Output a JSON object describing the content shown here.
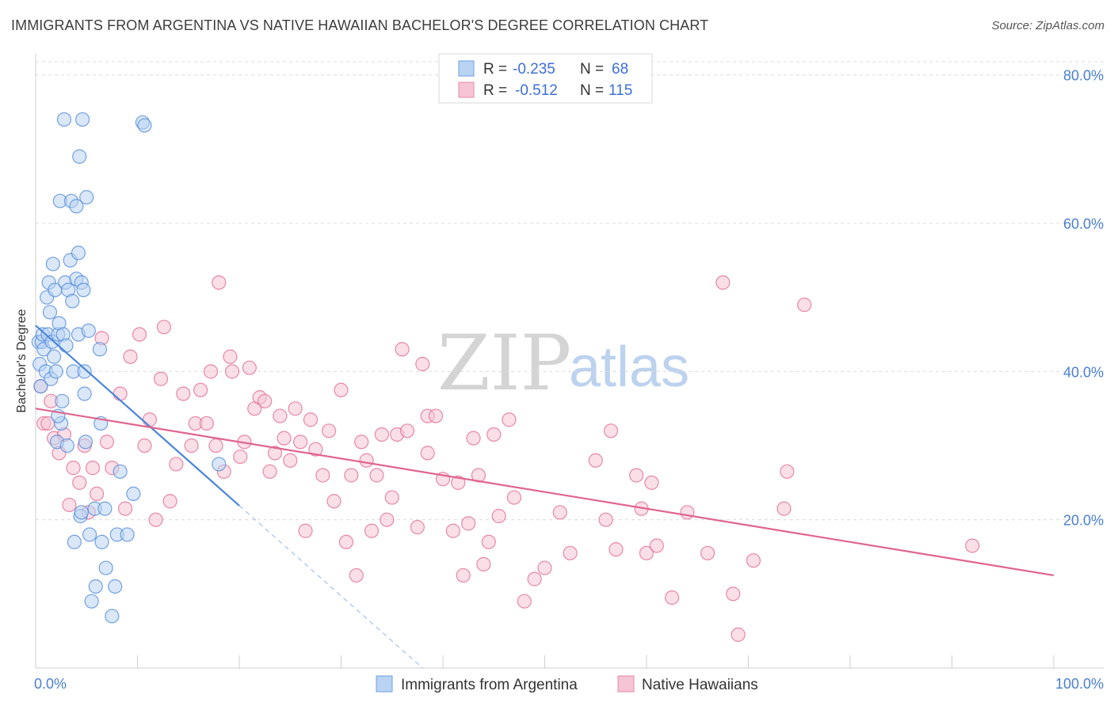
{
  "title": "IMMIGRANTS FROM ARGENTINA VS NATIVE HAWAIIAN BACHELOR'S DEGREE CORRELATION CHART",
  "source": "Source: ZipAtlas.com",
  "watermark": {
    "zip": "ZIP",
    "atlas": "atlas"
  },
  "colors": {
    "blue": "#4a86d9",
    "blue_fill": "#b9d3f3",
    "pink": "#e0648e",
    "pink_fill": "#f6c4d4",
    "grid": "#dcdcdc",
    "tick_text": "#4a7fd1"
  },
  "legend": {
    "rows": [
      {
        "r_label": "R =",
        "r_value": "-0.235",
        "n_label": "N =",
        "n_value": "68"
      },
      {
        "r_label": "R =",
        "r_value": "-0.512",
        "n_label": "N =",
        "n_value": "115"
      }
    ]
  },
  "chart_data": {
    "type": "scatter",
    "title": "IMMIGRANTS FROM ARGENTINA VS NATIVE HAWAIIAN BACHELOR'S DEGREE CORRELATION CHART",
    "xlabel": "",
    "ylabel": "Bachelor's Degree",
    "xlim": [
      0,
      100
    ],
    "ylim": [
      0,
      82
    ],
    "x_tick_labels": [
      "0.0%",
      "100.0%"
    ],
    "y_ticks": [
      20,
      40,
      60,
      80
    ],
    "y_tick_labels": [
      "20.0%",
      "40.0%",
      "60.0%",
      "80.0%"
    ],
    "grid": true,
    "series": [
      {
        "name": "Immigrants from Argentina",
        "r": -0.235,
        "n": 68,
        "trend": {
          "x0": 0,
          "y0": 46.2,
          "x1": 20,
          "y1": 21.9,
          "dash_x1": 38,
          "dash_y1": 0
        },
        "points": [
          [
            0.3,
            44
          ],
          [
            0.4,
            41
          ],
          [
            0.5,
            38
          ],
          [
            0.6,
            44
          ],
          [
            0.7,
            45
          ],
          [
            0.8,
            43
          ],
          [
            1,
            40
          ],
          [
            1.1,
            50
          ],
          [
            1.2,
            45
          ],
          [
            1.3,
            52
          ],
          [
            1.4,
            48
          ],
          [
            1.5,
            39
          ],
          [
            1.6,
            44
          ],
          [
            1.7,
            54.5
          ],
          [
            1.8,
            42
          ],
          [
            1.9,
            51
          ],
          [
            2,
            40
          ],
          [
            2.1,
            30.5
          ],
          [
            2.2,
            45
          ],
          [
            2.3,
            46.5
          ],
          [
            2.4,
            63
          ],
          [
            2.5,
            33
          ],
          [
            2.6,
            36
          ],
          [
            2.7,
            45
          ],
          [
            2.8,
            74
          ],
          [
            2.9,
            52
          ],
          [
            3,
            43.5
          ],
          [
            3.1,
            30
          ],
          [
            3.2,
            51
          ],
          [
            3.4,
            55
          ],
          [
            3.5,
            63
          ],
          [
            3.6,
            49.5
          ],
          [
            3.7,
            40
          ],
          [
            3.8,
            17
          ],
          [
            4,
            52.5
          ],
          [
            4,
            62.3
          ],
          [
            4.2,
            45
          ],
          [
            4.2,
            56
          ],
          [
            4.3,
            69
          ],
          [
            4.4,
            20.5
          ],
          [
            4.5,
            52
          ],
          [
            4.6,
            74
          ],
          [
            4.7,
            51
          ],
          [
            4.8,
            40
          ],
          [
            4.8,
            37
          ],
          [
            4.9,
            30.5
          ],
          [
            5,
            63.5
          ],
          [
            5.2,
            45.5
          ],
          [
            5.3,
            18
          ],
          [
            5.5,
            9
          ],
          [
            5.8,
            21.5
          ],
          [
            5.9,
            11
          ],
          [
            6.3,
            43
          ],
          [
            6.4,
            33
          ],
          [
            6.5,
            17
          ],
          [
            6.8,
            21.5
          ],
          [
            6.9,
            13.5
          ],
          [
            7.5,
            7
          ],
          [
            7.8,
            11
          ],
          [
            8,
            18
          ],
          [
            8.3,
            26.5
          ],
          [
            9,
            18
          ],
          [
            9.6,
            23.5
          ],
          [
            10.5,
            73.6
          ],
          [
            10.7,
            73.2
          ],
          [
            18,
            27.5
          ],
          [
            4.5,
            21
          ],
          [
            2.2,
            34
          ]
        ]
      },
      {
        "name": "Native Hawaiians",
        "r": -0.512,
        "n": 115,
        "trend": {
          "x0": 0,
          "y0": 35,
          "x1": 100,
          "y1": 12.5
        },
        "points": [
          [
            0.5,
            38
          ],
          [
            0.8,
            33
          ],
          [
            1.2,
            33
          ],
          [
            1.8,
            31
          ],
          [
            2.3,
            29
          ],
          [
            2.8,
            31.5
          ],
          [
            3.3,
            22
          ],
          [
            3.7,
            27
          ],
          [
            4.3,
            25
          ],
          [
            4.8,
            30
          ],
          [
            5.2,
            21
          ],
          [
            5.6,
            27
          ],
          [
            6,
            23.5
          ],
          [
            6.5,
            44.5
          ],
          [
            7,
            30.5
          ],
          [
            7.5,
            27
          ],
          [
            8.3,
            37
          ],
          [
            8.8,
            21.5
          ],
          [
            9.3,
            42
          ],
          [
            10.2,
            45
          ],
          [
            10.7,
            30
          ],
          [
            11.2,
            33.5
          ],
          [
            11.8,
            20
          ],
          [
            12.3,
            39
          ],
          [
            12.6,
            46
          ],
          [
            13.2,
            22.5
          ],
          [
            13.8,
            27.5
          ],
          [
            14.5,
            37
          ],
          [
            15.3,
            30
          ],
          [
            15.7,
            33
          ],
          [
            16.2,
            37.5
          ],
          [
            16.8,
            33
          ],
          [
            17.2,
            40
          ],
          [
            17.7,
            30
          ],
          [
            18.5,
            26.5
          ],
          [
            19.1,
            42
          ],
          [
            19.3,
            40
          ],
          [
            20.1,
            28.5
          ],
          [
            20.5,
            30.5
          ],
          [
            21,
            40.5
          ],
          [
            21.5,
            35
          ],
          [
            22,
            36.5
          ],
          [
            22.5,
            36
          ],
          [
            23,
            26.5
          ],
          [
            23.5,
            29
          ],
          [
            24,
            34
          ],
          [
            24.4,
            31
          ],
          [
            25,
            28
          ],
          [
            25.5,
            35
          ],
          [
            26,
            30.5
          ],
          [
            26.5,
            18.5
          ],
          [
            27,
            33.5
          ],
          [
            27.5,
            29.5
          ],
          [
            28.2,
            26
          ],
          [
            28.8,
            32
          ],
          [
            29.3,
            22.5
          ],
          [
            30,
            37.5
          ],
          [
            30.5,
            17
          ],
          [
            31,
            26
          ],
          [
            31.5,
            12.5
          ],
          [
            32,
            30.5
          ],
          [
            32.5,
            28
          ],
          [
            33,
            18.5
          ],
          [
            33.5,
            26
          ],
          [
            34,
            31.5
          ],
          [
            34.5,
            20
          ],
          [
            35,
            23
          ],
          [
            35.5,
            31.5
          ],
          [
            36,
            43
          ],
          [
            36.5,
            32
          ],
          [
            37.5,
            19
          ],
          [
            38,
            41
          ],
          [
            38.5,
            34
          ],
          [
            39.3,
            34
          ],
          [
            40,
            25.5
          ],
          [
            41,
            18.5
          ],
          [
            41.5,
            25
          ],
          [
            42,
            12.5
          ],
          [
            42.5,
            19.5
          ],
          [
            43,
            31
          ],
          [
            43.5,
            26
          ],
          [
            44,
            14
          ],
          [
            44.5,
            17
          ],
          [
            45,
            31.5
          ],
          [
            45.5,
            20.5
          ],
          [
            46.5,
            33.5
          ],
          [
            47,
            23
          ],
          [
            48,
            9
          ],
          [
            49,
            12
          ],
          [
            50,
            13.5
          ],
          [
            51.5,
            21
          ],
          [
            52.5,
            15.5
          ],
          [
            55,
            28
          ],
          [
            56,
            20
          ],
          [
            56.5,
            32
          ],
          [
            57,
            16
          ],
          [
            59,
            26
          ],
          [
            59.5,
            21.5
          ],
          [
            60,
            15.5
          ],
          [
            60.5,
            25
          ],
          [
            61,
            16.5
          ],
          [
            62.5,
            9.5
          ],
          [
            64,
            21
          ],
          [
            66,
            15.5
          ],
          [
            67.5,
            52
          ],
          [
            68.5,
            10
          ],
          [
            69,
            4.5
          ],
          [
            70.5,
            14.5
          ],
          [
            73.5,
            21.5
          ],
          [
            73.8,
            26.5
          ],
          [
            92,
            16.5
          ],
          [
            75.5,
            49
          ],
          [
            1.5,
            36
          ],
          [
            18,
            52
          ],
          [
            38.5,
            29
          ]
        ]
      }
    ]
  },
  "bottom_legend": {
    "items": [
      {
        "label": "Immigrants from Argentina"
      },
      {
        "label": "Native Hawaiians"
      }
    ]
  }
}
